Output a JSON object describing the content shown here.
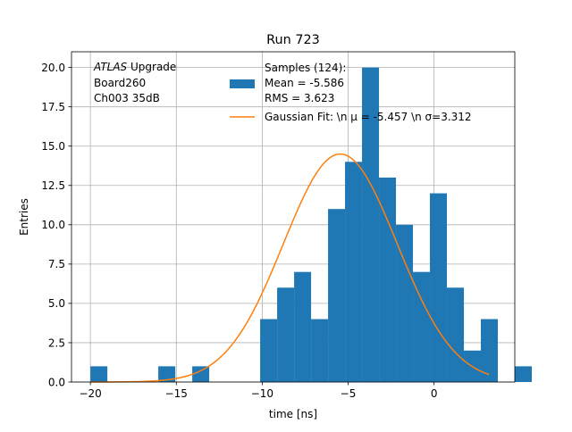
{
  "chart_data": {
    "type": "bar",
    "title": "Run 723",
    "xlabel": "time [ns]",
    "ylabel": "Entries",
    "xlim": [
      -21.1,
      4.7
    ],
    "ylim": [
      0,
      21
    ],
    "grid": true,
    "xticks": [
      -20,
      -15,
      -10,
      -5,
      0
    ],
    "xtick_labels": [
      "−20",
      "−15",
      "−10",
      "−5",
      "0"
    ],
    "yticks": [
      0,
      2.5,
      5,
      7.5,
      10,
      12.5,
      15,
      17.5,
      20
    ],
    "ytick_labels": [
      "0.0",
      "2.5",
      "5.0",
      "7.5",
      "10.0",
      "12.5",
      "15.0",
      "17.5",
      "20.0"
    ],
    "annotation": {
      "line1_italic": "ATLAS",
      "line1_rest": " Upgrade",
      "line2": " Board260",
      "line3": " Ch003 35dB"
    },
    "legend": {
      "placement": "upper-right",
      "histogram_lines": [
        "Samples (124):",
        " Mean = -5.586",
        " RMS = 3.623"
      ],
      "fit_label": "Gaussian Fit: \\n μ = -5.457 \\n σ=3.312"
    },
    "colors": {
      "histogram": "#1f77b4",
      "fit": "#ff7f0e"
    },
    "histogram": {
      "name": "Samples (124)",
      "bin_start": -20.0,
      "bin_width": 0.988,
      "counts": [
        1,
        0,
        0,
        0,
        1,
        0,
        1,
        0,
        0,
        0,
        4,
        6,
        7,
        4,
        11,
        14,
        20,
        13,
        10,
        7,
        12,
        6,
        2,
        4,
        0,
        1
      ]
    },
    "fit": {
      "name": "Gaussian Fit",
      "amplitude": 14.5,
      "mu": -5.457,
      "sigma": 3.312,
      "x_range": [
        -20.0,
        3.2
      ]
    }
  }
}
